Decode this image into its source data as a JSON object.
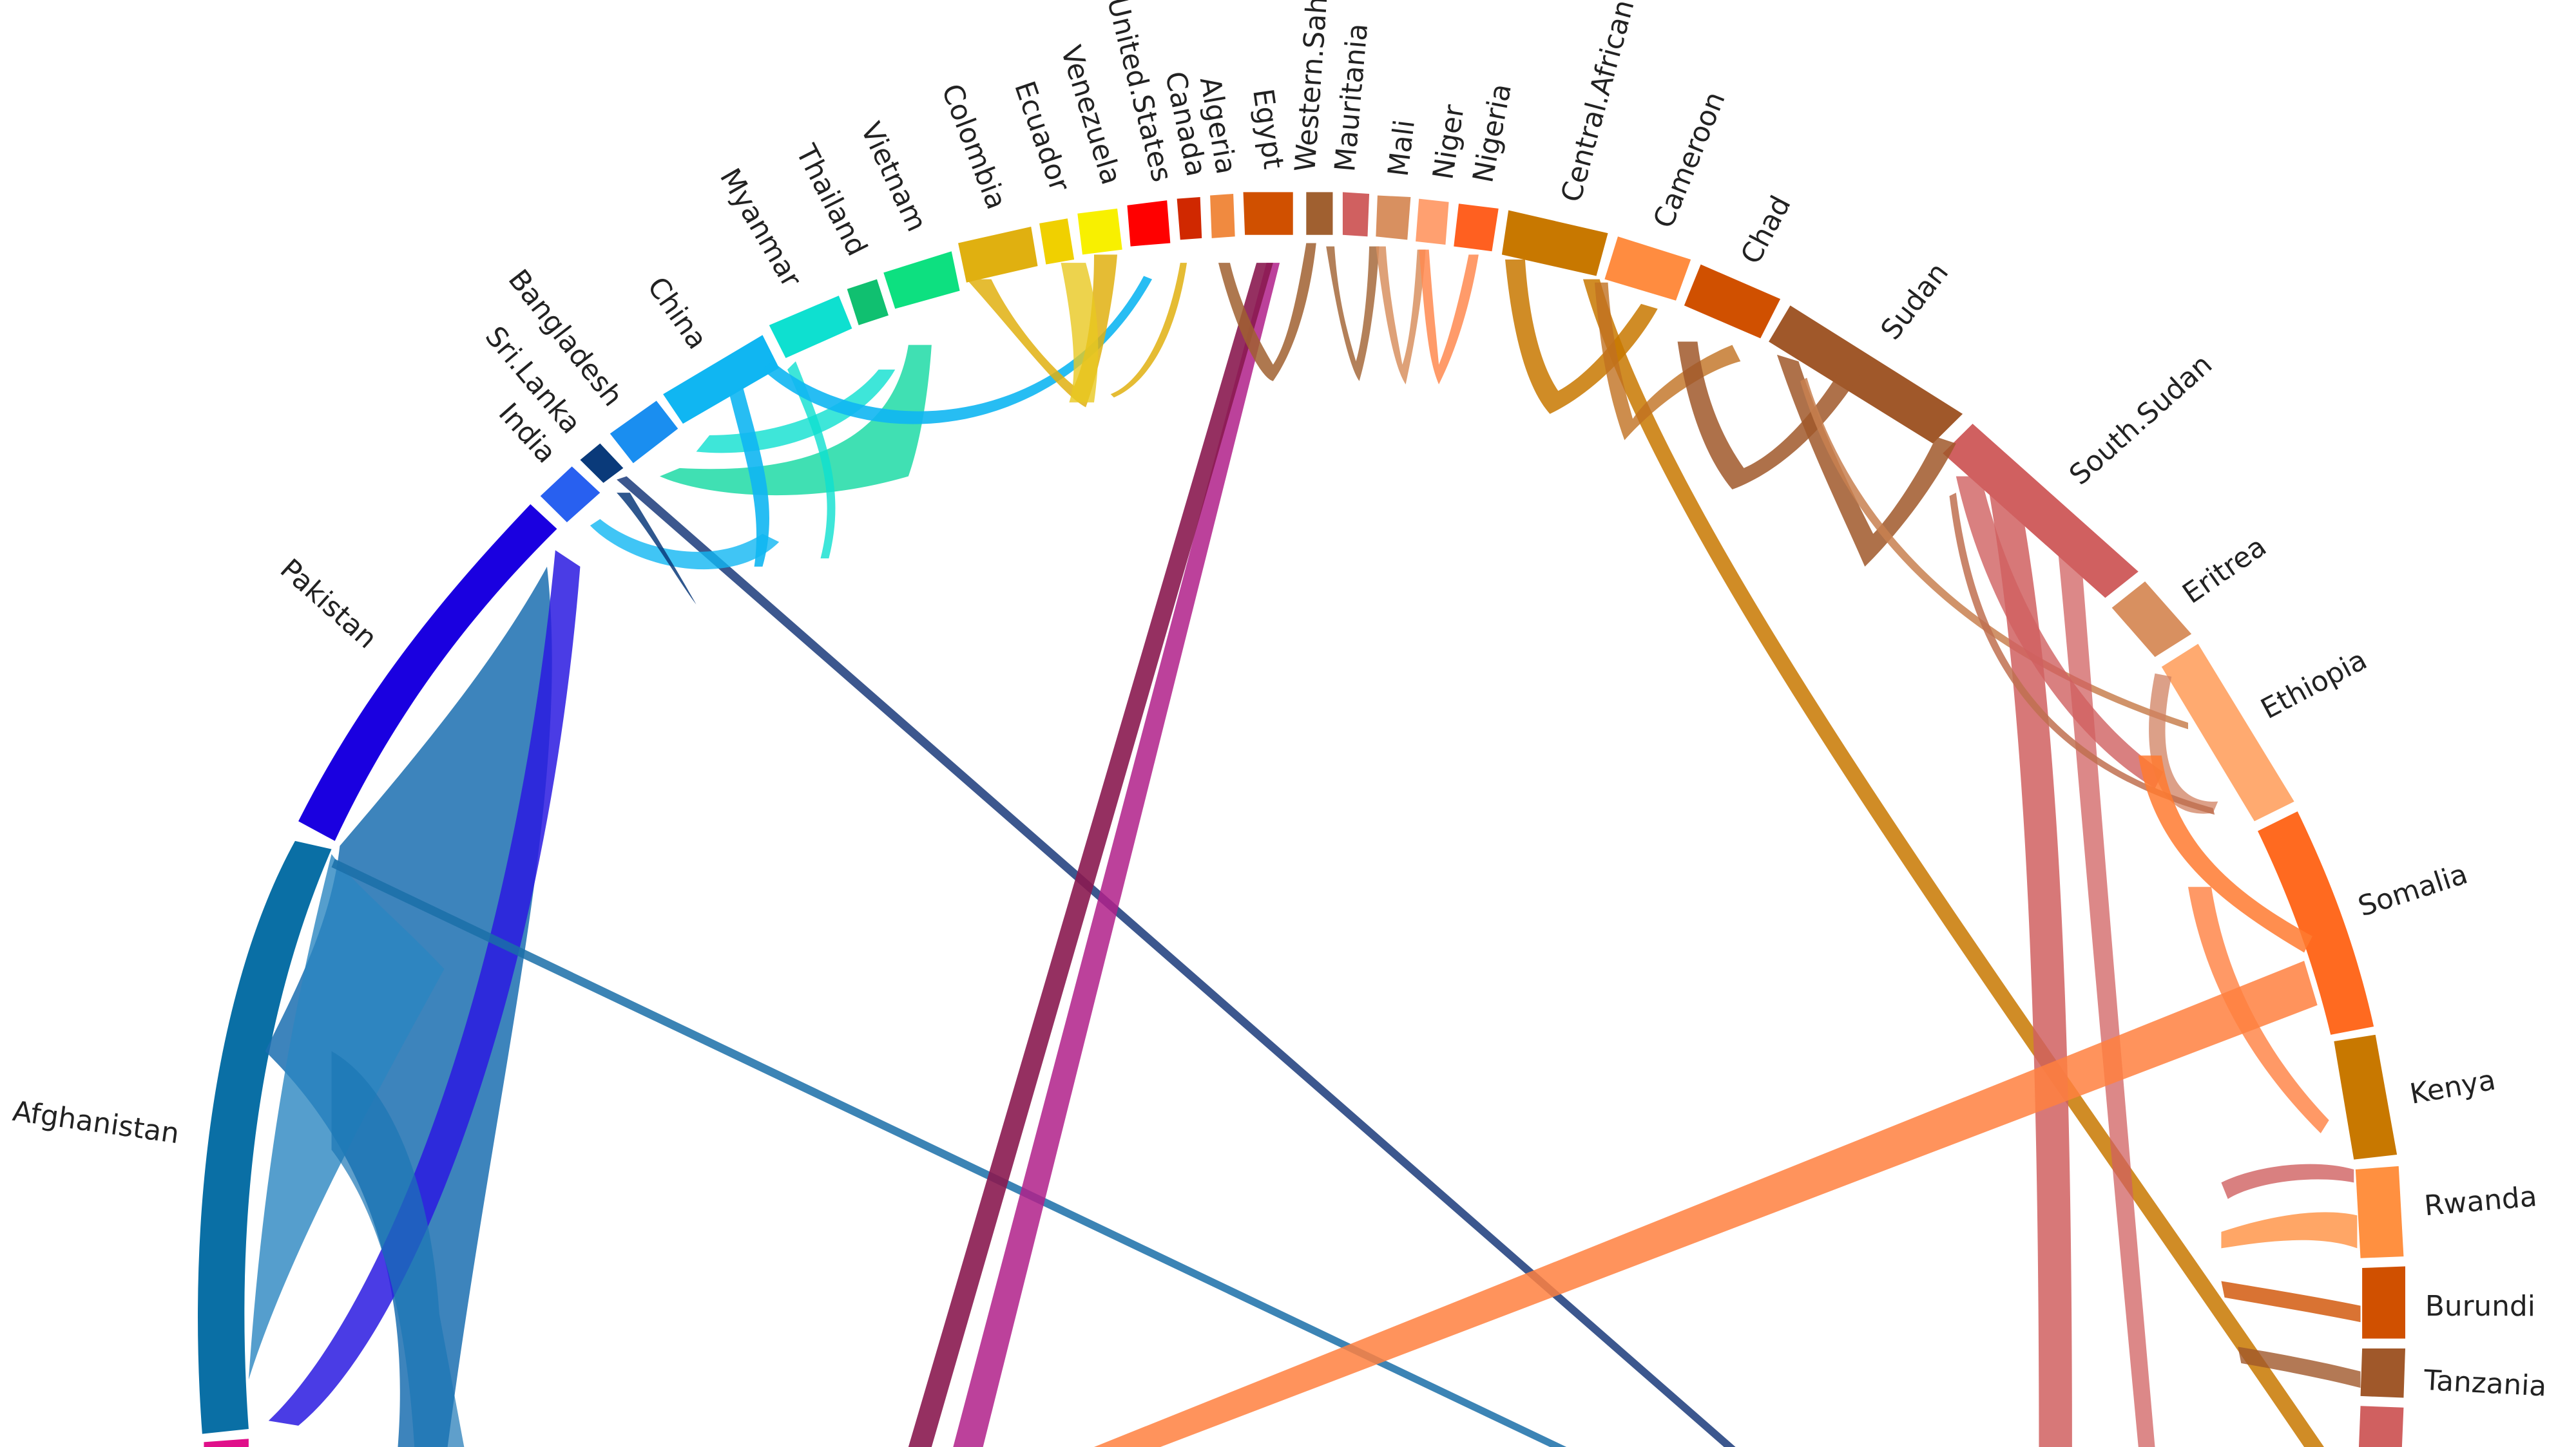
{
  "diagram": {
    "type": "chord",
    "country_labels": [
      "Pakistan",
      "Afghanistan",
      "India",
      "Sri.Lanka",
      "Bangladesh",
      "China",
      "Myanmar",
      "Thailand",
      "Vietnam",
      "Colombia",
      "Ecuador",
      "Venezuela",
      "United.States",
      "Canada",
      "Algeria",
      "Egypt",
      "Western.Sahara",
      "Mauritania",
      "Mali",
      "Niger",
      "Nigeria",
      "Central.African",
      "Cameroon",
      "Chad",
      "Sudan",
      "South.Sudan",
      "Eritrea",
      "Ethiopia",
      "Somalia",
      "Kenya",
      "Rwanda",
      "Burundi",
      "Tanzania"
    ],
    "segments": [
      {
        "name": "Afghanistan",
        "color": "#0a6fa5"
      },
      {
        "name": "Pakistan",
        "color": "#1a00e0"
      },
      {
        "name": "India",
        "color": "#2860f0"
      },
      {
        "name": "Sri.Lanka",
        "color": "#0a3a7a"
      },
      {
        "name": "Bangladesh",
        "color": "#1a8ef0"
      },
      {
        "name": "China",
        "color": "#10b6f2"
      },
      {
        "name": "Myanmar",
        "color": "#0ee0d0"
      },
      {
        "name": "Thailand",
        "color": "#10c070"
      },
      {
        "name": "Vietnam",
        "color": "#0de080"
      },
      {
        "name": "Colombia",
        "color": "#e0b010"
      },
      {
        "name": "Ecuador",
        "color": "#f0d000"
      },
      {
        "name": "Venezuela",
        "color": "#f8f000"
      },
      {
        "name": "United.States",
        "color": "#ff0000"
      },
      {
        "name": "Canada",
        "color": "#d02800"
      },
      {
        "name": "Algeria",
        "color": "#f08a40"
      },
      {
        "name": "Egypt",
        "color": "#d05000"
      },
      {
        "name": "Western.Sahara",
        "color": "#a06030"
      },
      {
        "name": "Mauritania",
        "color": "#d06060"
      },
      {
        "name": "Mali",
        "color": "#d89060"
      },
      {
        "name": "Niger",
        "color": "#ffa070"
      },
      {
        "name": "Nigeria",
        "color": "#ff6020"
      },
      {
        "name": "Central.African",
        "color": "#c87800"
      },
      {
        "name": "Cameroon",
        "color": "#ff8c40"
      },
      {
        "name": "Chad",
        "color": "#d05000"
      },
      {
        "name": "Sudan",
        "color": "#a0582a"
      },
      {
        "name": "South.Sudan",
        "color": "#d06060"
      },
      {
        "name": "Eritrea",
        "color": "#d89060"
      },
      {
        "name": "Ethiopia",
        "color": "#ffaa70"
      },
      {
        "name": "Somalia",
        "color": "#ff6a20"
      },
      {
        "name": "Kenya",
        "color": "#c87800"
      },
      {
        "name": "Rwanda",
        "color": "#ff9040"
      },
      {
        "name": "Burundi",
        "color": "#d05000"
      },
      {
        "name": "Tanzania",
        "color": "#a0582a"
      },
      {
        "name": "",
        "color": "#d06060"
      }
    ]
  }
}
